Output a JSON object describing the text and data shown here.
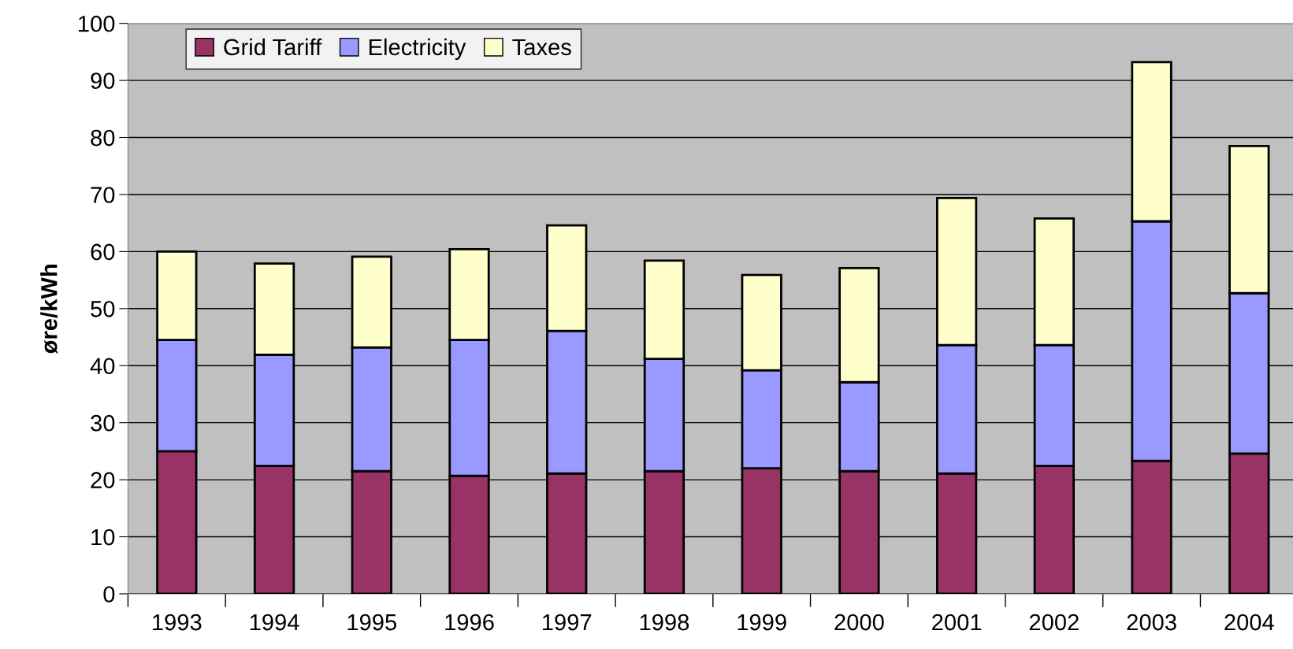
{
  "chart_data": {
    "type": "bar",
    "stacked": true,
    "ylabel": "øre/kWh",
    "categories": [
      "1993",
      "1994",
      "1995",
      "1996",
      "1997",
      "1998",
      "1999",
      "2000",
      "2001",
      "2002",
      "2003",
      "2004"
    ],
    "series": [
      {
        "name": "Grid Tariff",
        "color": "#993366",
        "values": [
          25.0,
          22.4,
          21.5,
          20.7,
          21.1,
          21.5,
          22.0,
          21.5,
          21.1,
          22.4,
          23.3,
          24.6
        ]
      },
      {
        "name": "Electricity",
        "color": "#9999ff",
        "values": [
          19.5,
          19.5,
          21.7,
          23.8,
          25.0,
          19.7,
          17.2,
          15.6,
          22.5,
          21.2,
          42.0,
          28.1
        ]
      },
      {
        "name": "Taxes",
        "color": "#ffffcc",
        "values": [
          15.5,
          16.0,
          15.9,
          15.9,
          18.5,
          17.2,
          16.7,
          20.0,
          25.8,
          22.2,
          27.9,
          25.8
        ]
      }
    ],
    "ylim": [
      0,
      100
    ],
    "yticks": [
      0,
      10,
      20,
      30,
      40,
      50,
      60,
      70,
      80,
      90,
      100
    ],
    "grid": "y",
    "legend": "top left"
  }
}
